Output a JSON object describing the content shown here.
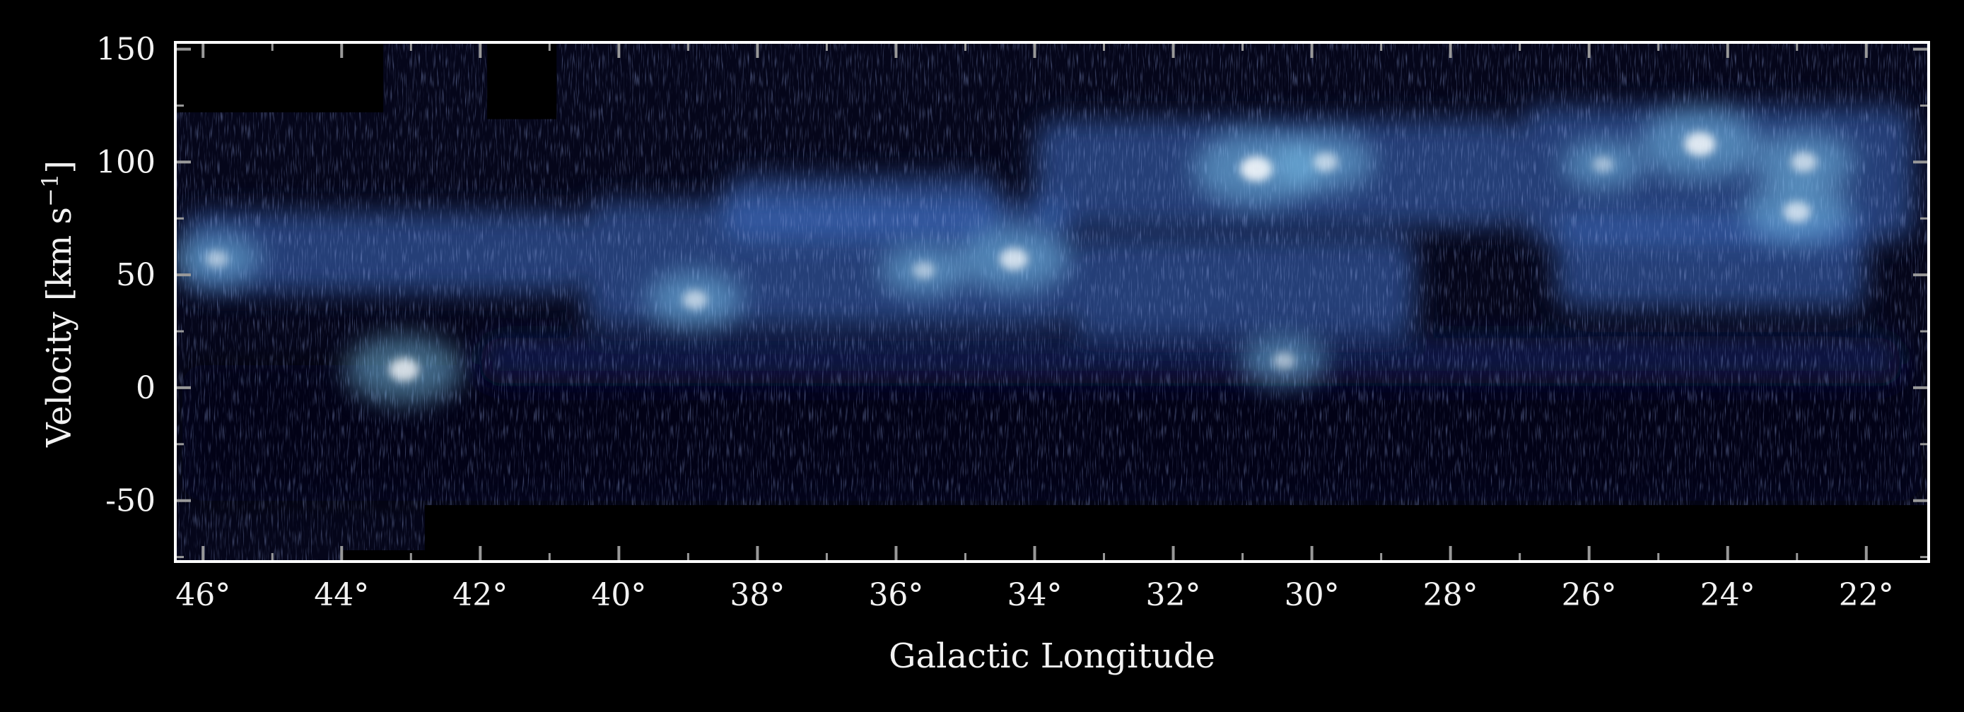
{
  "chart_data": {
    "type": "heatmap",
    "title": "",
    "xlabel": "Galactic Longitude",
    "ylabel": "Velocity [km s",
    "ylabel_sup": "−1",
    "ylabel_close": "]",
    "xlim": [
      46.4,
      21.1
    ],
    "ylim": [
      -77,
      153
    ],
    "x_axis_reversed": true,
    "x_ticks": [
      {
        "value": 46,
        "label": "46°"
      },
      {
        "value": 44,
        "label": "44°"
      },
      {
        "value": 42,
        "label": "42°"
      },
      {
        "value": 40,
        "label": "40°"
      },
      {
        "value": 38,
        "label": "38°"
      },
      {
        "value": 36,
        "label": "36°"
      },
      {
        "value": 34,
        "label": "34°"
      },
      {
        "value": 32,
        "label": "32°"
      },
      {
        "value": 30,
        "label": "30°"
      },
      {
        "value": 28,
        "label": "28°"
      },
      {
        "value": 26,
        "label": "26°"
      },
      {
        "value": 24,
        "label": "24°"
      },
      {
        "value": 22,
        "label": "22°"
      }
    ],
    "y_ticks": [
      {
        "value": 150,
        "label": "150"
      },
      {
        "value": 100,
        "label": "100"
      },
      {
        "value": 50,
        "label": "50"
      },
      {
        "value": 0,
        "label": "0"
      },
      {
        "value": -50,
        "label": "-50"
      }
    ],
    "colormap": [
      "#05061a",
      "#1a2a6c",
      "#3f6fc4",
      "#7ec8f0",
      "#ffffff"
    ],
    "background_color": "#000000",
    "frame_color": "#ffffff",
    "bright_features": [
      {
        "l": 30.8,
        "v": 97,
        "intensity": 1.0
      },
      {
        "l": 24.4,
        "v": 108,
        "intensity": 0.95
      },
      {
        "l": 43.1,
        "v": 8,
        "intensity": 0.9
      },
      {
        "l": 34.3,
        "v": 57,
        "intensity": 0.85
      },
      {
        "l": 23.0,
        "v": 78,
        "intensity": 0.8
      },
      {
        "l": 22.9,
        "v": 100,
        "intensity": 0.75
      },
      {
        "l": 29.8,
        "v": 100,
        "intensity": 0.7
      },
      {
        "l": 38.9,
        "v": 39,
        "intensity": 0.7
      },
      {
        "l": 45.8,
        "v": 57,
        "intensity": 0.6
      },
      {
        "l": 35.6,
        "v": 52,
        "intensity": 0.6
      },
      {
        "l": 30.4,
        "v": 12,
        "intensity": 0.6
      },
      {
        "l": 25.8,
        "v": 99,
        "intensity": 0.55
      }
    ],
    "emission_bands": [
      {
        "l_start": 46.3,
        "l_end": 40.5,
        "v_center": 60,
        "v_width": 18,
        "level": 0.45
      },
      {
        "l_start": 40.5,
        "l_end": 33.5,
        "v_center": 55,
        "v_width": 28,
        "level": 0.5
      },
      {
        "l_start": 38.5,
        "l_end": 34.5,
        "v_center": 80,
        "v_width": 14,
        "level": 0.4
      },
      {
        "l_start": 34.0,
        "l_end": 27.0,
        "v_center": 95,
        "v_width": 24,
        "level": 0.55
      },
      {
        "l_start": 33.5,
        "l_end": 28.5,
        "v_center": 45,
        "v_width": 22,
        "level": 0.45
      },
      {
        "l_start": 27.0,
        "l_end": 21.3,
        "v_center": 95,
        "v_width": 30,
        "level": 0.55
      },
      {
        "l_start": 26.5,
        "l_end": 22.0,
        "v_center": 55,
        "v_width": 20,
        "level": 0.45
      },
      {
        "l_start": 42.0,
        "l_end": 21.5,
        "v_center": 12,
        "v_width": 10,
        "level": 0.25
      },
      {
        "l_start": 46.3,
        "l_end": 21.2,
        "v_center": -20,
        "v_width": 30,
        "level": 0.12
      }
    ],
    "coverage_blanks": [
      {
        "l_start": 46.4,
        "l_end": 43.4,
        "v_start": 122,
        "v_end": 153
      },
      {
        "l_start": 41.9,
        "l_end": 40.9,
        "v_start": 119,
        "v_end": 153
      },
      {
        "l_start": 42.8,
        "l_end": 21.1,
        "v_start": -77,
        "v_end": -52
      },
      {
        "l_start": 44.0,
        "l_end": 42.8,
        "v_start": -77,
        "v_end": -72
      }
    ]
  }
}
